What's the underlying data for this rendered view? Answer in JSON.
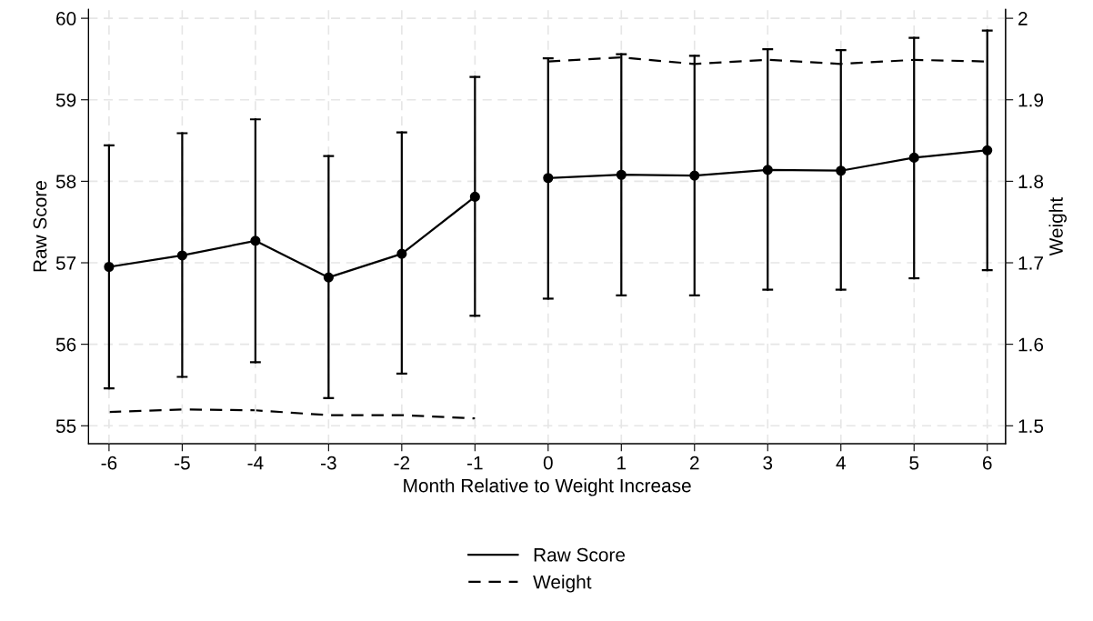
{
  "chart_data": {
    "type": "line",
    "xlabel": "Month Relative to Weight Increase",
    "ylabel": "Raw Score",
    "y2label": "Weight",
    "xlim": [
      -6.28,
      6.25
    ],
    "xticks": [
      -6,
      -5,
      -4,
      -3,
      -2,
      -1,
      0,
      1,
      2,
      3,
      4,
      5,
      6
    ],
    "ylim": [
      54.78,
      60.11
    ],
    "yticks": [
      55,
      56,
      57,
      58,
      59,
      60
    ],
    "y2lim": [
      1.478,
      2.011
    ],
    "y2ticks": [
      1.5,
      1.6,
      1.7,
      1.8,
      1.9,
      2
    ],
    "grid": true,
    "legend": "bottom",
    "series": [
      {
        "name": "Raw Score",
        "color": "#000000",
        "marker": "circle",
        "line_style": "solid",
        "x": [
          -6,
          -5,
          -4,
          -3,
          -2,
          -1
        ],
        "values": [
          56.95,
          57.09,
          57.27,
          56.82,
          57.11,
          57.81
        ],
        "errors": [
          [
            55.46,
            58.44
          ],
          [
            55.6,
            58.59
          ],
          [
            55.78,
            58.76
          ],
          [
            55.34,
            58.31
          ],
          [
            55.64,
            58.6
          ],
          [
            56.35,
            59.28
          ]
        ]
      },
      {
        "color": "#000000",
        "marker": "circle",
        "line_style": "solid",
        "x": [
          0,
          1,
          2,
          3,
          4,
          5,
          6
        ],
        "values": [
          58.04,
          58.08,
          58.07,
          58.14,
          58.13,
          58.29,
          58.38
        ],
        "errors": [
          [
            56.56,
            59.51
          ],
          [
            56.6,
            59.56
          ],
          [
            56.6,
            59.54
          ],
          [
            56.67,
            59.62
          ],
          [
            56.67,
            59.61
          ],
          [
            56.81,
            59.76
          ],
          [
            56.91,
            59.85
          ]
        ]
      },
      {
        "name": "Weight",
        "color": "#000000",
        "marker": "none",
        "line_style": "dashed",
        "axis": "y2",
        "x": [
          -6,
          -5,
          -4,
          -3,
          -2,
          -1
        ],
        "values": [
          1.517,
          1.52,
          1.519,
          1.513,
          1.513,
          1.509
        ]
      },
      {
        "color": "#000000",
        "marker": "none",
        "line_style": "dashed",
        "axis": "y2",
        "x": [
          0,
          1,
          2,
          3,
          4,
          5,
          6
        ],
        "values": [
          1.947,
          1.952,
          1.944,
          1.949,
          1.944,
          1.949,
          1.947
        ]
      }
    ]
  }
}
